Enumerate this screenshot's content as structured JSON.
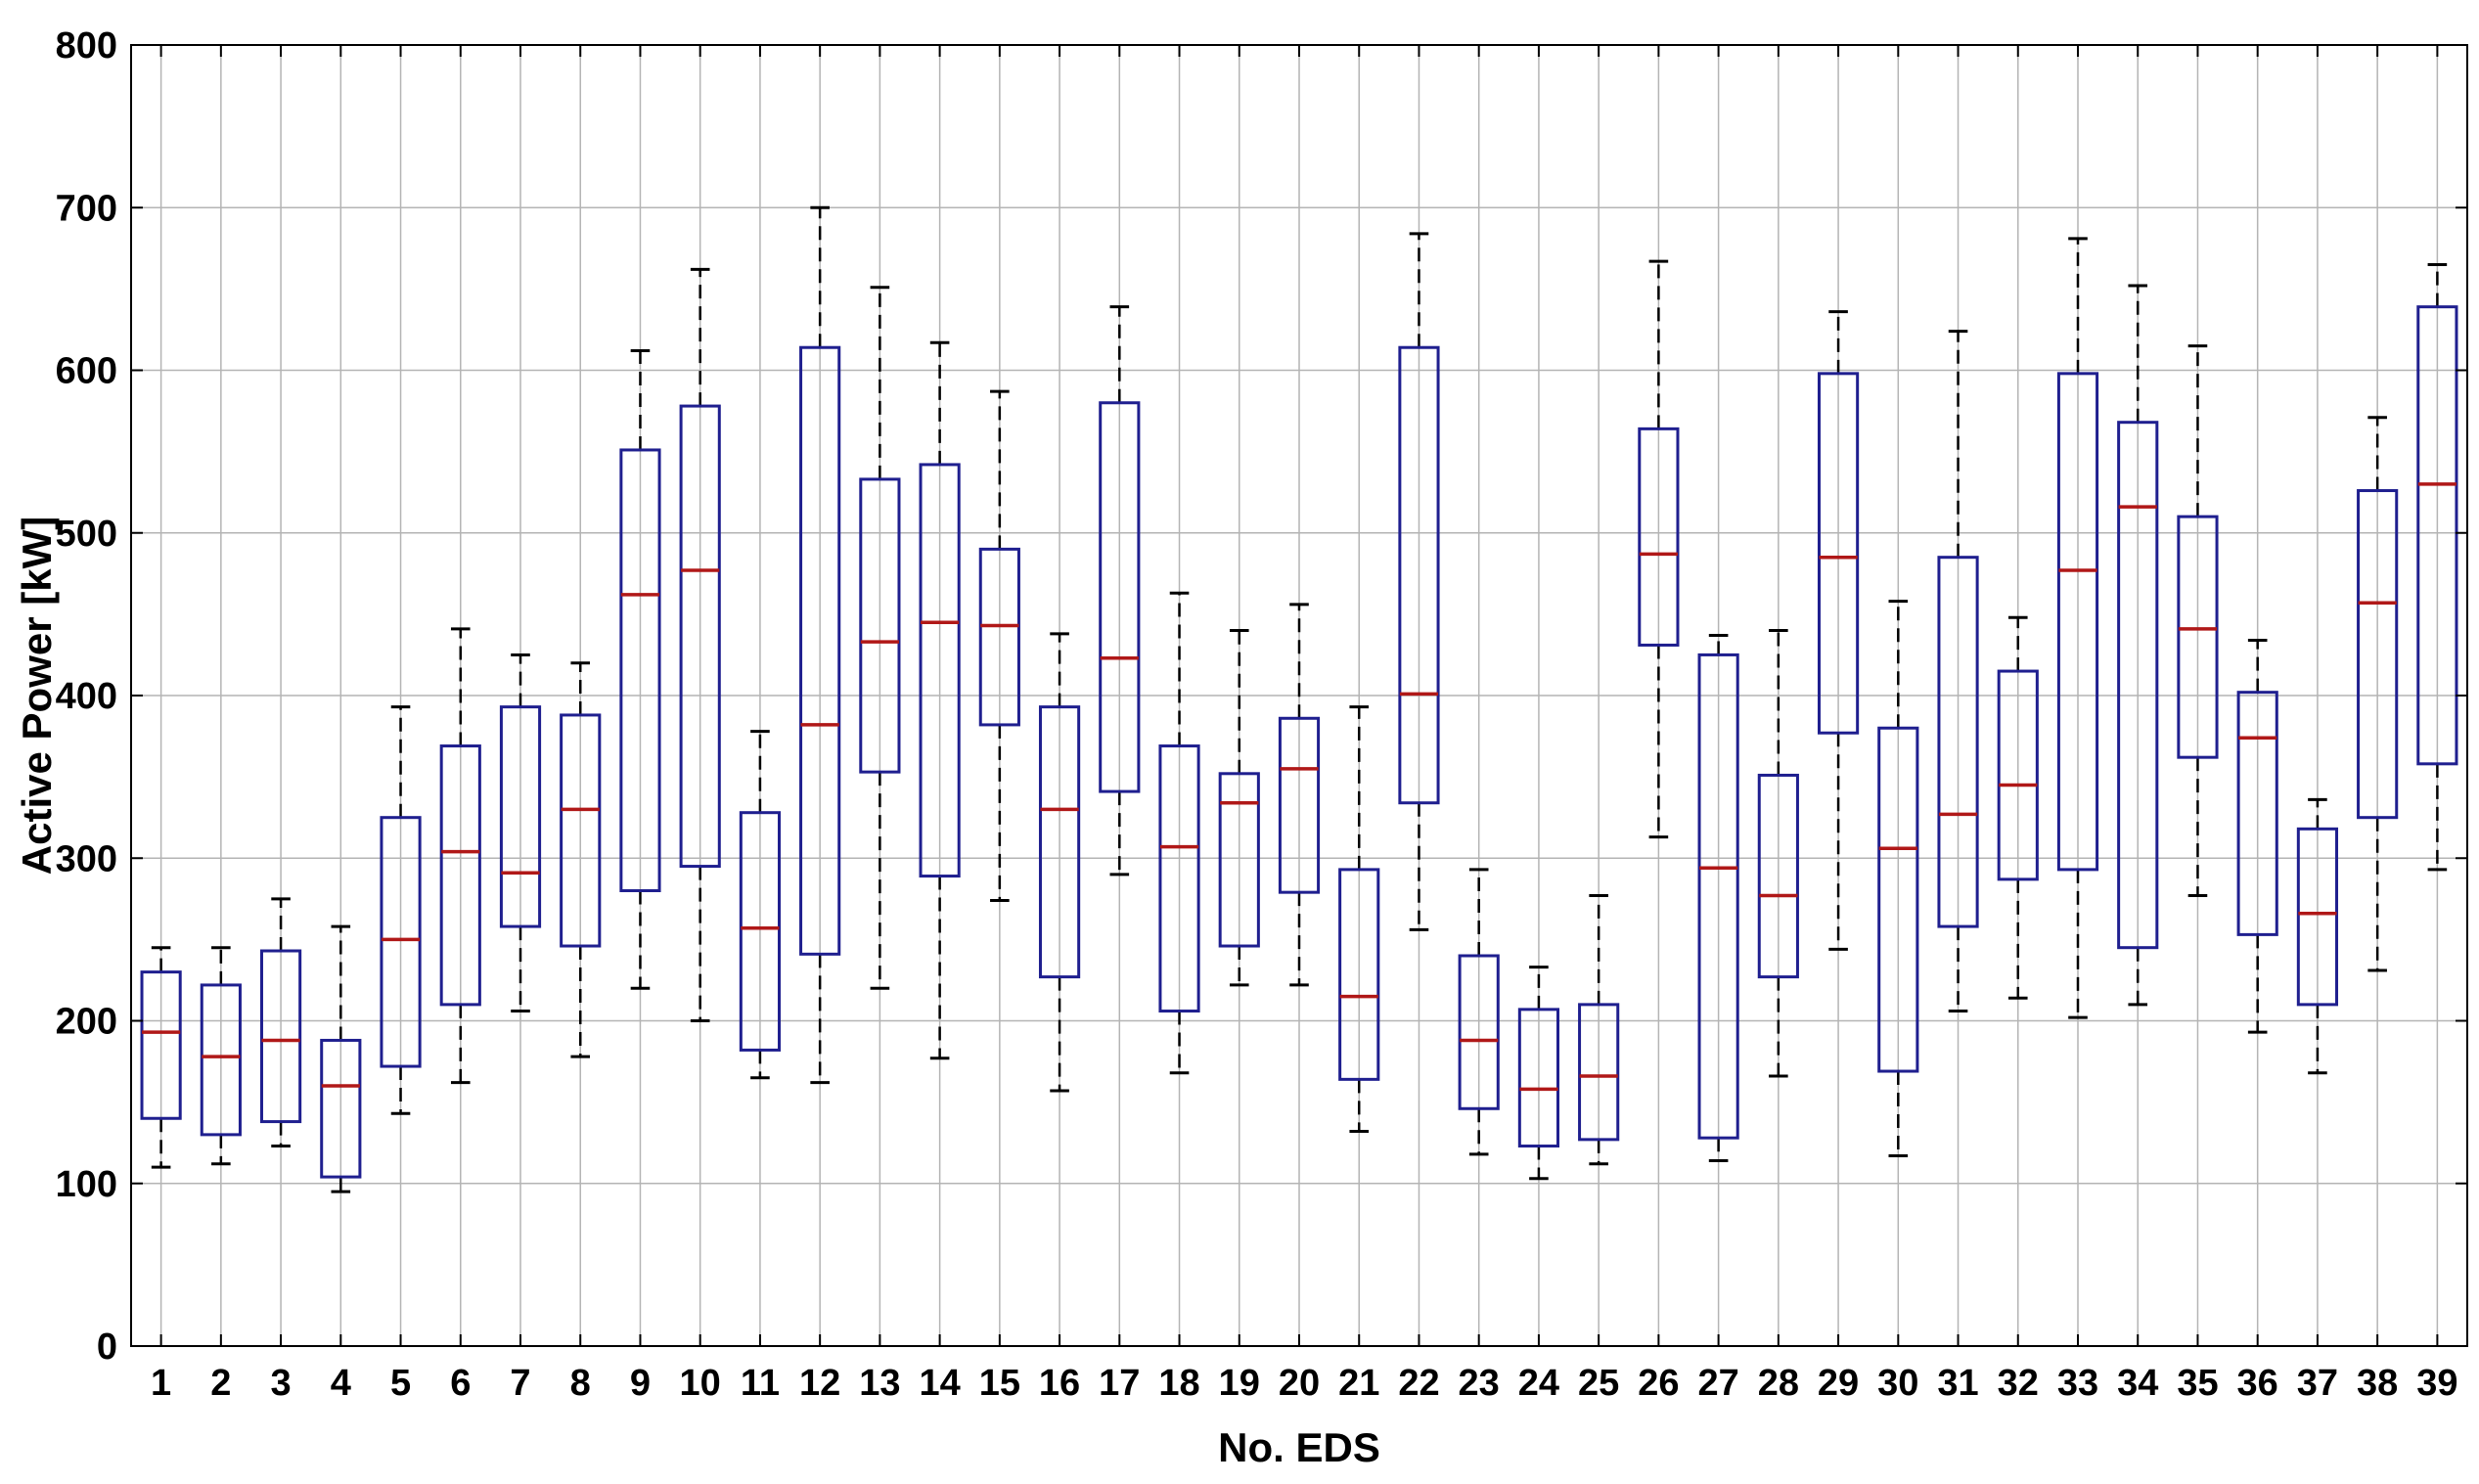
{
  "chart_data": {
    "type": "boxplot",
    "title": "",
    "xlabel": "No. EDS",
    "ylabel": "Active Power [kW]",
    "ylim": [
      0,
      800
    ],
    "yticks": [
      0,
      100,
      200,
      300,
      400,
      500,
      600,
      700,
      800
    ],
    "grid": true,
    "colors": {
      "box": "#1f1f8f",
      "median": "#b01818",
      "whisker": "#000000",
      "grid": "#b4b4b4"
    },
    "categories": [
      "1",
      "2",
      "3",
      "4",
      "5",
      "6",
      "7",
      "8",
      "9",
      "10",
      "11",
      "12",
      "13",
      "14",
      "15",
      "16",
      "17",
      "18",
      "19",
      "20",
      "21",
      "22",
      "23",
      "24",
      "25",
      "26",
      "27",
      "28",
      "29",
      "30",
      "31",
      "32",
      "33",
      "34",
      "35",
      "36",
      "37",
      "38",
      "39"
    ],
    "boxes": [
      {
        "min": 110,
        "q1": 140,
        "median": 193,
        "q3": 230,
        "max": 245
      },
      {
        "min": 112,
        "q1": 130,
        "median": 178,
        "q3": 222,
        "max": 245
      },
      {
        "min": 123,
        "q1": 138,
        "median": 188,
        "q3": 243,
        "max": 275
      },
      {
        "min": 95,
        "q1": 104,
        "median": 160,
        "q3": 188,
        "max": 258
      },
      {
        "min": 143,
        "q1": 172,
        "median": 250,
        "q3": 325,
        "max": 393
      },
      {
        "min": 162,
        "q1": 210,
        "median": 304,
        "q3": 369,
        "max": 441
      },
      {
        "min": 206,
        "q1": 258,
        "median": 291,
        "q3": 393,
        "max": 425
      },
      {
        "min": 178,
        "q1": 246,
        "median": 330,
        "q3": 388,
        "max": 420
      },
      {
        "min": 220,
        "q1": 280,
        "median": 462,
        "q3": 551,
        "max": 612
      },
      {
        "min": 200,
        "q1": 295,
        "median": 477,
        "q3": 578,
        "max": 662
      },
      {
        "min": 165,
        "q1": 182,
        "median": 257,
        "q3": 328,
        "max": 378
      },
      {
        "min": 162,
        "q1": 241,
        "median": 382,
        "q3": 614,
        "max": 700
      },
      {
        "min": 220,
        "q1": 353,
        "median": 433,
        "q3": 533,
        "max": 651
      },
      {
        "min": 177,
        "q1": 289,
        "median": 445,
        "q3": 542,
        "max": 617
      },
      {
        "min": 274,
        "q1": 382,
        "median": 443,
        "q3": 490,
        "max": 587
      },
      {
        "min": 157,
        "q1": 227,
        "median": 330,
        "q3": 393,
        "max": 438
      },
      {
        "min": 290,
        "q1": 341,
        "median": 423,
        "q3": 580,
        "max": 639
      },
      {
        "min": 168,
        "q1": 206,
        "median": 307,
        "q3": 369,
        "max": 463
      },
      {
        "min": 222,
        "q1": 246,
        "median": 334,
        "q3": 352,
        "max": 440
      },
      {
        "min": 222,
        "q1": 279,
        "median": 355,
        "q3": 386,
        "max": 456
      },
      {
        "min": 132,
        "q1": 164,
        "median": 215,
        "q3": 293,
        "max": 393
      },
      {
        "min": 256,
        "q1": 334,
        "median": 401,
        "q3": 614,
        "max": 684
      },
      {
        "min": 118,
        "q1": 146,
        "median": 188,
        "q3": 240,
        "max": 293
      },
      {
        "min": 103,
        "q1": 123,
        "median": 158,
        "q3": 207,
        "max": 233
      },
      {
        "min": 112,
        "q1": 127,
        "median": 166,
        "q3": 210,
        "max": 277
      },
      {
        "min": 313,
        "q1": 431,
        "median": 487,
        "q3": 564,
        "max": 667
      },
      {
        "min": 114,
        "q1": 128,
        "median": 294,
        "q3": 425,
        "max": 437
      },
      {
        "min": 166,
        "q1": 227,
        "median": 277,
        "q3": 351,
        "max": 440
      },
      {
        "min": 244,
        "q1": 377,
        "median": 485,
        "q3": 598,
        "max": 636
      },
      {
        "min": 117,
        "q1": 169,
        "median": 306,
        "q3": 380,
        "max": 458
      },
      {
        "min": 206,
        "q1": 258,
        "median": 327,
        "q3": 485,
        "max": 624
      },
      {
        "min": 214,
        "q1": 287,
        "median": 345,
        "q3": 415,
        "max": 448
      },
      {
        "min": 202,
        "q1": 293,
        "median": 477,
        "q3": 598,
        "max": 681
      },
      {
        "min": 210,
        "q1": 245,
        "median": 516,
        "q3": 568,
        "max": 652
      },
      {
        "min": 277,
        "q1": 362,
        "median": 441,
        "q3": 510,
        "max": 615
      },
      {
        "min": 193,
        "q1": 253,
        "median": 374,
        "q3": 402,
        "max": 434
      },
      {
        "min": 168,
        "q1": 210,
        "median": 266,
        "q3": 318,
        "max": 336
      },
      {
        "min": 231,
        "q1": 325,
        "median": 457,
        "q3": 526,
        "max": 571
      },
      {
        "min": 293,
        "q1": 358,
        "median": 530,
        "q3": 639,
        "max": 665
      }
    ]
  }
}
